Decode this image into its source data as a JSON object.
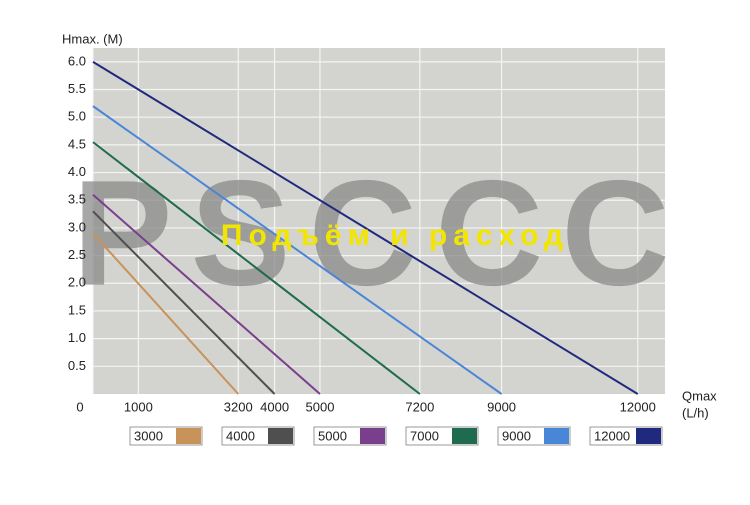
{
  "chart_data": {
    "type": "line",
    "y_label": "Hmax. (M)",
    "x_label": "Qmax",
    "x_unit": "(L/h)",
    "watermark": "PSCCC",
    "overlay_text": "Подъём и расход",
    "xlim": [
      0,
      12600
    ],
    "ylim": [
      0,
      6.25
    ],
    "xticks": [
      0,
      1000,
      3200,
      4000,
      5000,
      7200,
      9000,
      12000
    ],
    "yticks": [
      0.5,
      {
        "value": 1,
        "label": "1.0"
      },
      1.5,
      {
        "value": 2,
        "label": "2.0"
      },
      2.5,
      {
        "value": 3,
        "label": "3.0"
      },
      3.5,
      {
        "value": 4,
        "label": "4.0"
      },
      4.5,
      {
        "value": 5,
        "label": "5.0"
      },
      5.5,
      {
        "value": 6,
        "label": "6.0"
      }
    ],
    "grid": true,
    "series": [
      {
        "name": "3000",
        "color": "#c8925a",
        "x": [
          0,
          3200
        ],
        "values": [
          2.9,
          0
        ]
      },
      {
        "name": "4000",
        "color": "#4f4f4f",
        "x": [
          0,
          4000
        ],
        "values": [
          3.3,
          0
        ]
      },
      {
        "name": "5000",
        "color": "#7a3f8c",
        "x": [
          0,
          5000
        ],
        "values": [
          3.6,
          0
        ]
      },
      {
        "name": "7000",
        "color": "#1e6b50",
        "x": [
          0,
          7200
        ],
        "values": [
          4.55,
          0
        ]
      },
      {
        "name": "9000",
        "color": "#4a86d8",
        "x": [
          0,
          9000
        ],
        "values": [
          5.2,
          0
        ]
      },
      {
        "name": "12000",
        "color": "#1f2a7e",
        "x": [
          0,
          12000
        ],
        "values": [
          6.0,
          0
        ]
      }
    ]
  }
}
